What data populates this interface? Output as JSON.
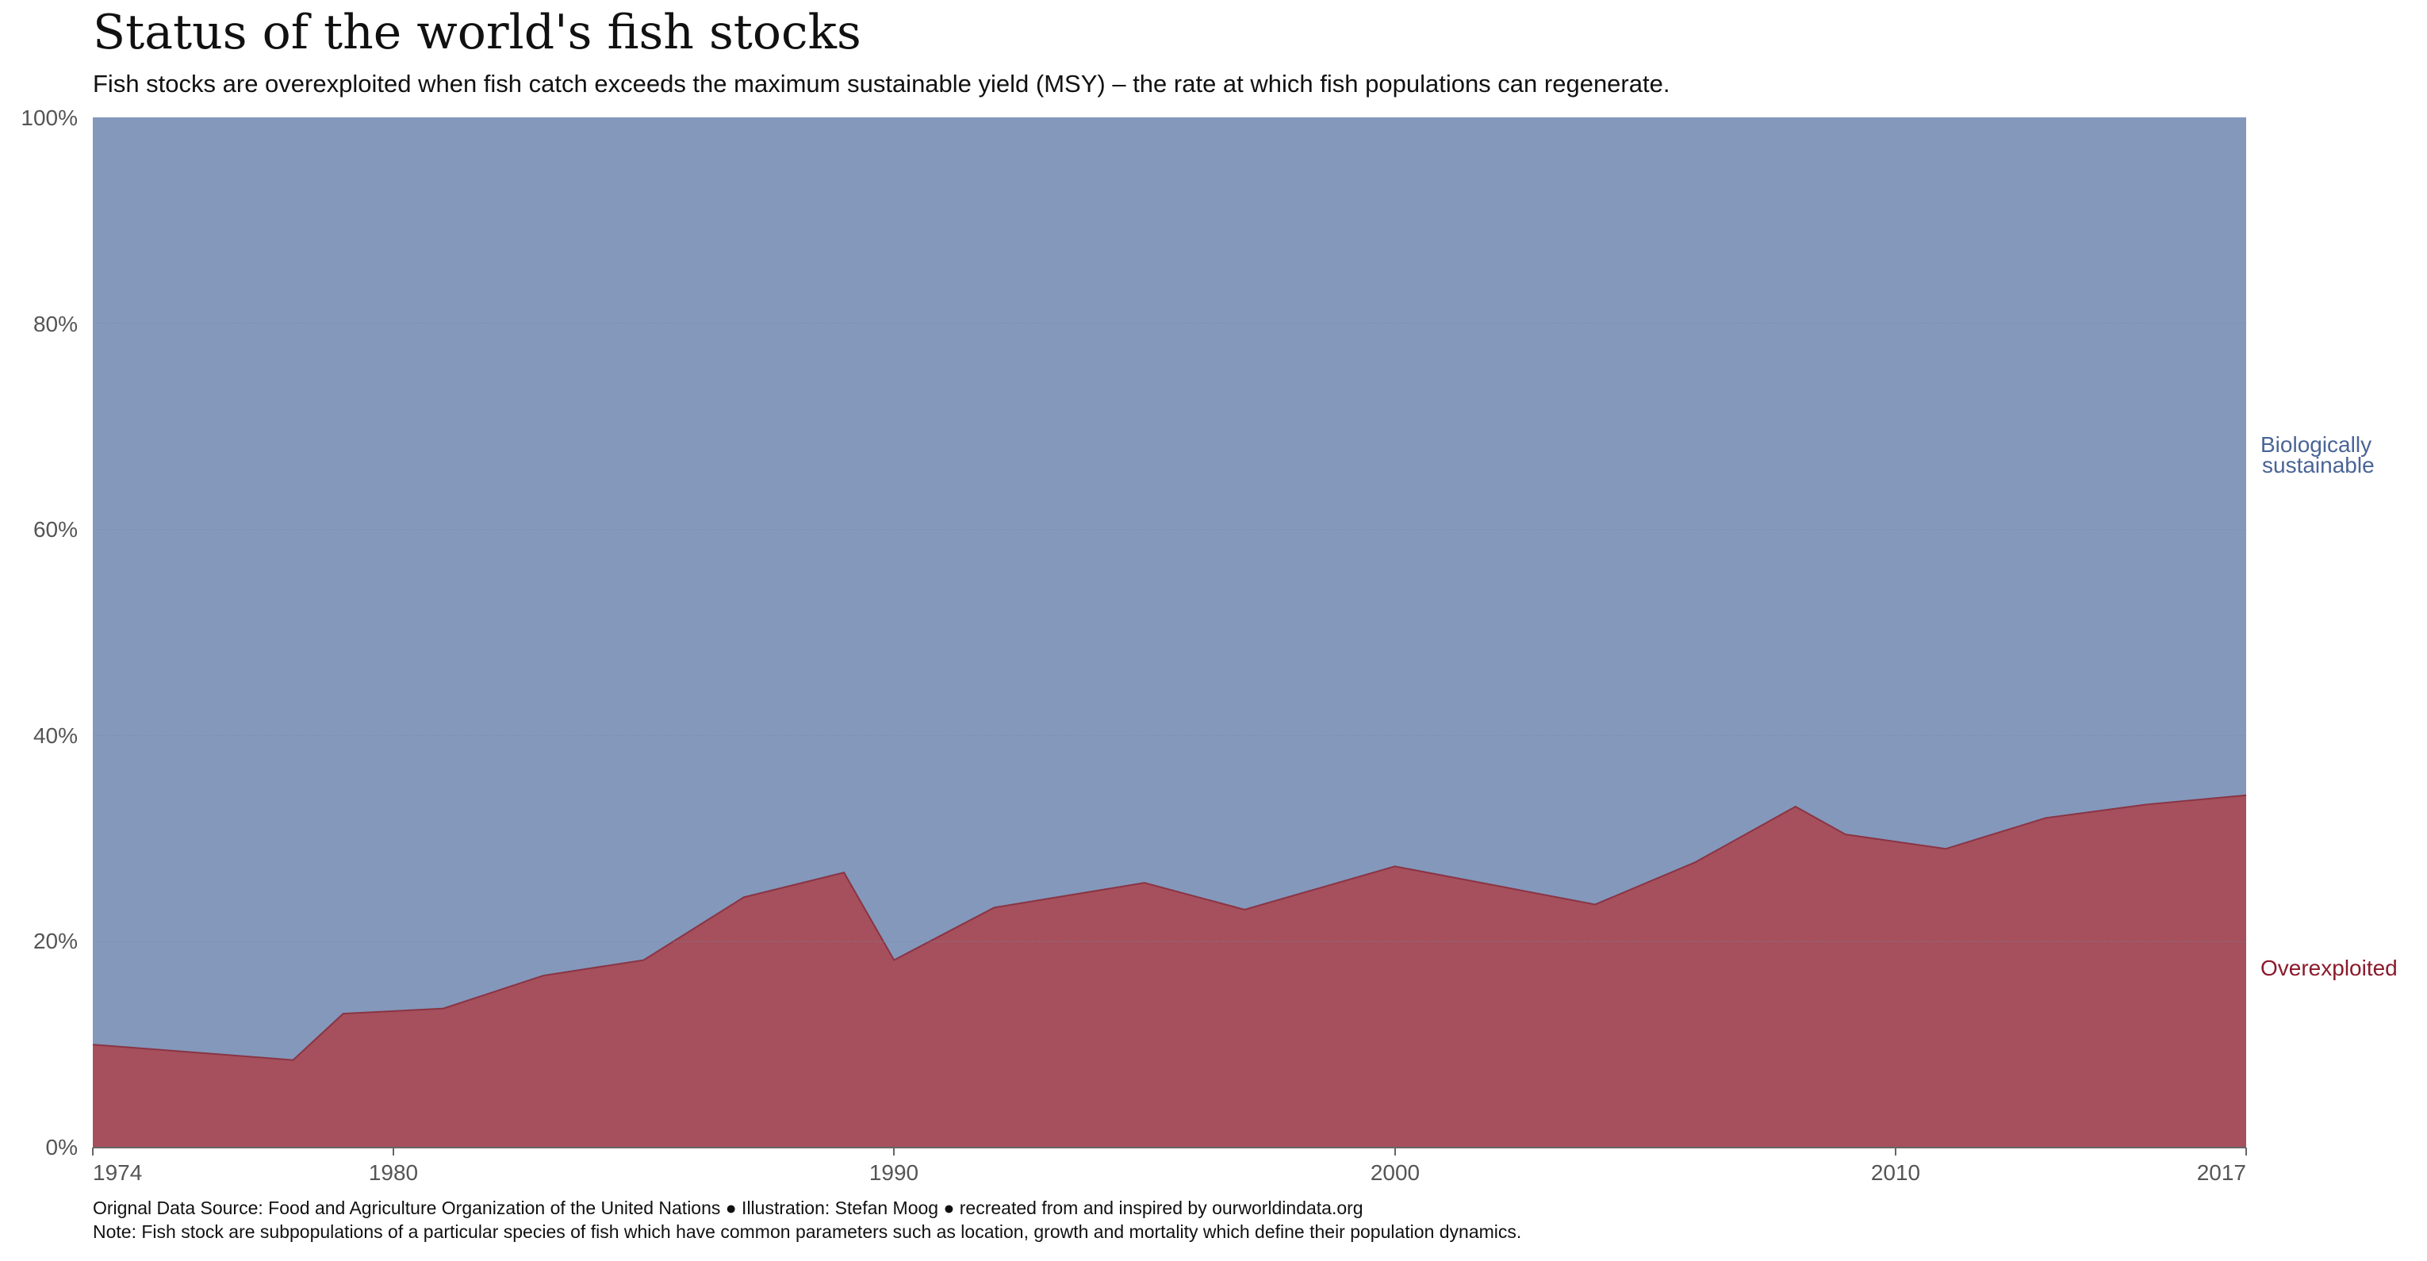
{
  "title": "Status of the world's fish stocks",
  "subtitle": "Fish stocks are overexploited when fish catch exceeds the maximum sustainable yield (MSY) – the rate at which fish populations can regenerate.",
  "footer": {
    "source": "Orignal Data Source: Food and Agriculture Organization of the United Nations ● Illustration: Stefan Moog ● recreated from and inspired by ourworldindata.org",
    "note": "Note: Fish stock are subpopulations of a particular species of fish which have common parameters such as location, growth and mortality which define their population dynamics."
  },
  "colors": {
    "sustainable_fill": "#8498bb",
    "sustainable_label": "#4a6496",
    "overexploited_fill": "#a5505c",
    "overexploited_stroke": "#8a3444",
    "overexploited_label": "#8b1a2b"
  },
  "chart_data": {
    "type": "area",
    "stacked": true,
    "normalized": true,
    "xlim": [
      1974,
      2017
    ],
    "ylim": [
      0,
      100
    ],
    "x_ticks": [
      "1974",
      "1980",
      "1990",
      "2000",
      "2010",
      "2017"
    ],
    "y_ticks": [
      "0%",
      "20%",
      "40%",
      "60%",
      "80%",
      "100%"
    ],
    "grid": true,
    "legend_placement": "right (inline labels)",
    "x": [
      1974,
      1978,
      1979,
      1981,
      1983,
      1985,
      1987,
      1989,
      1990,
      1992,
      1995,
      1997,
      2000,
      2004,
      2006,
      2008,
      2009,
      2011,
      2013,
      2015,
      2017
    ],
    "series": [
      {
        "name": "Overexploited",
        "values": [
          10.0,
          8.5,
          13.0,
          13.5,
          16.7,
          18.2,
          24.3,
          26.7,
          18.2,
          23.3,
          25.7,
          23.1,
          27.3,
          23.6,
          27.7,
          33.1,
          30.4,
          29.0,
          32.0,
          33.3,
          34.2
        ]
      },
      {
        "name": "Biologically sustainable",
        "values": [
          90.0,
          91.5,
          87.0,
          86.5,
          83.3,
          81.8,
          75.7,
          73.3,
          81.8,
          76.7,
          74.3,
          76.9,
          72.7,
          76.4,
          72.3,
          66.9,
          69.6,
          71.0,
          68.0,
          66.7,
          65.8
        ]
      }
    ],
    "legend_labels": {
      "sustainable_line1": "Biologically",
      "sustainable_line2": "sustainable",
      "overexploited": "Overexploited"
    }
  }
}
